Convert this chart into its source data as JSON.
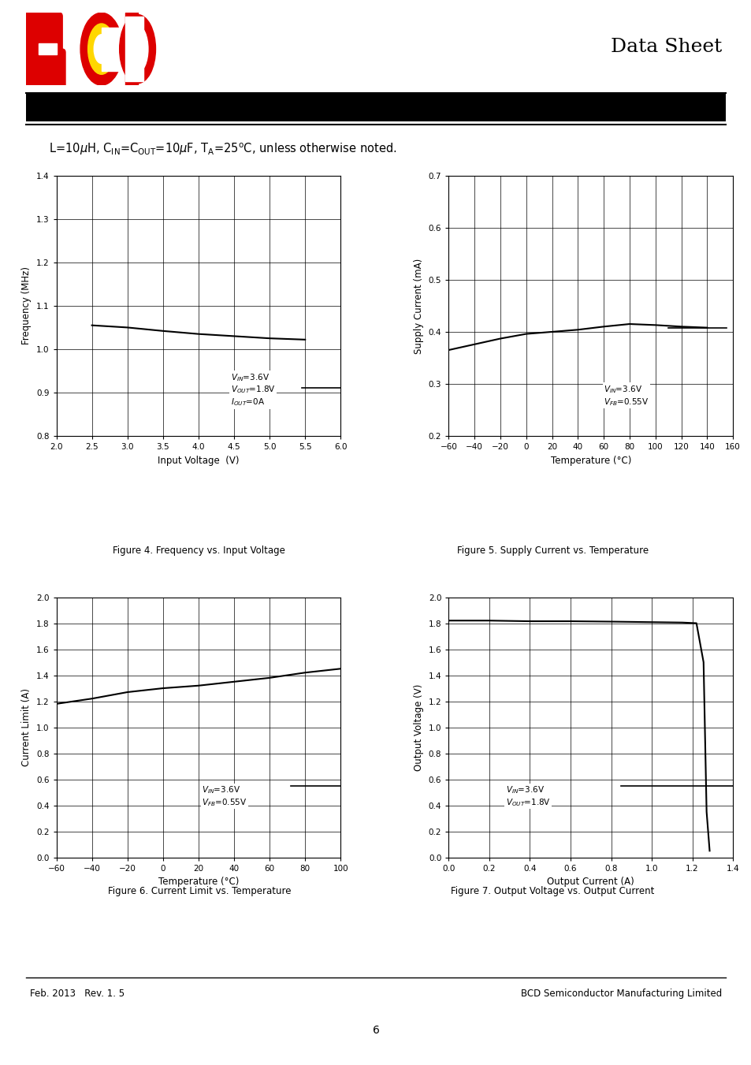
{
  "page_title": "Data Sheet",
  "fig4": {
    "title": "Figure 4. Frequency vs. Input Voltage",
    "xlabel": "Input Voltage  (V)",
    "ylabel": "Frequency (MHz)",
    "xlim": [
      2.0,
      6.0
    ],
    "ylim": [
      0.8,
      1.4
    ],
    "xticks": [
      2.0,
      2.5,
      3.0,
      3.5,
      4.0,
      4.5,
      5.0,
      5.5,
      6.0
    ],
    "yticks": [
      0.8,
      0.9,
      1.0,
      1.1,
      1.2,
      1.3,
      1.4
    ],
    "x": [
      2.5,
      3.0,
      3.5,
      4.0,
      4.5,
      5.0,
      5.5
    ],
    "y": [
      1.055,
      1.05,
      1.042,
      1.035,
      1.03,
      1.025,
      1.022
    ],
    "ann_x": 4.45,
    "ann_y": 0.865,
    "ann_line_x": [
      5.45,
      6.0
    ],
    "ann_line_y": [
      0.91,
      0.91
    ]
  },
  "fig5": {
    "title": "Figure 5. Supply Current vs. Temperature",
    "xlabel": "Temperature (°C)",
    "ylabel": "Supply Current (mA)",
    "xlim": [
      -60,
      160
    ],
    "ylim": [
      0.2,
      0.7
    ],
    "xticks": [
      -60,
      -40,
      -20,
      0,
      20,
      40,
      60,
      80,
      100,
      120,
      140,
      160
    ],
    "yticks": [
      0.2,
      0.3,
      0.4,
      0.5,
      0.6,
      0.7
    ],
    "x": [
      -60,
      -40,
      -20,
      0,
      20,
      40,
      60,
      80,
      100,
      120,
      140
    ],
    "y": [
      0.365,
      0.376,
      0.387,
      0.396,
      0.4,
      0.404,
      0.41,
      0.415,
      0.413,
      0.41,
      0.408
    ],
    "ann_x": 60,
    "ann_y": 0.255,
    "ann_line_x": [
      110,
      155
    ],
    "ann_line_y": [
      0.408,
      0.408
    ]
  },
  "fig6": {
    "title": "Figure 6. Current Limit vs. Temperature",
    "xlabel": "Temperature (°C)",
    "ylabel": "Current Limit (A)",
    "xlim": [
      -60,
      100
    ],
    "ylim": [
      0.0,
      2.0
    ],
    "xticks": [
      -60,
      -40,
      -20,
      0,
      20,
      40,
      60,
      80,
      100
    ],
    "yticks": [
      0.0,
      0.2,
      0.4,
      0.6,
      0.8,
      1.0,
      1.2,
      1.4,
      1.6,
      1.8,
      2.0
    ],
    "x": [
      -60,
      -40,
      -20,
      0,
      20,
      40,
      60,
      80,
      100
    ],
    "y": [
      1.18,
      1.22,
      1.27,
      1.3,
      1.32,
      1.35,
      1.38,
      1.42,
      1.45
    ],
    "ann_x": 22,
    "ann_y": 0.38,
    "ann_line_x": [
      72,
      100
    ],
    "ann_line_y": [
      0.55,
      0.55
    ]
  },
  "fig7": {
    "title": "Figure 7. Output Voltage vs. Output Current",
    "xlabel": "Output Current (A)",
    "ylabel": "Output Voltage (V)",
    "xlim": [
      0.0,
      1.4
    ],
    "ylim": [
      0.0,
      2.0
    ],
    "xticks": [
      0.0,
      0.2,
      0.4,
      0.6,
      0.8,
      1.0,
      1.2,
      1.4
    ],
    "yticks": [
      0.0,
      0.2,
      0.4,
      0.6,
      0.8,
      1.0,
      1.2,
      1.4,
      1.6,
      1.8,
      2.0
    ],
    "x": [
      0.0,
      0.2,
      0.4,
      0.6,
      0.8,
      1.0,
      1.15,
      1.22,
      1.255,
      1.27,
      1.285
    ],
    "y": [
      1.82,
      1.82,
      1.815,
      1.815,
      1.812,
      1.808,
      1.805,
      1.8,
      1.5,
      0.35,
      0.05
    ],
    "ann_x": 0.28,
    "ann_y": 0.38,
    "ann_line_x": [
      0.85,
      1.4
    ],
    "ann_line_y": [
      0.55,
      0.55
    ]
  },
  "footer_left": "Feb. 2013   Rev. 1. 5",
  "footer_right": "BCD Semiconductor Manufacturing Limited",
  "page_number": "6"
}
